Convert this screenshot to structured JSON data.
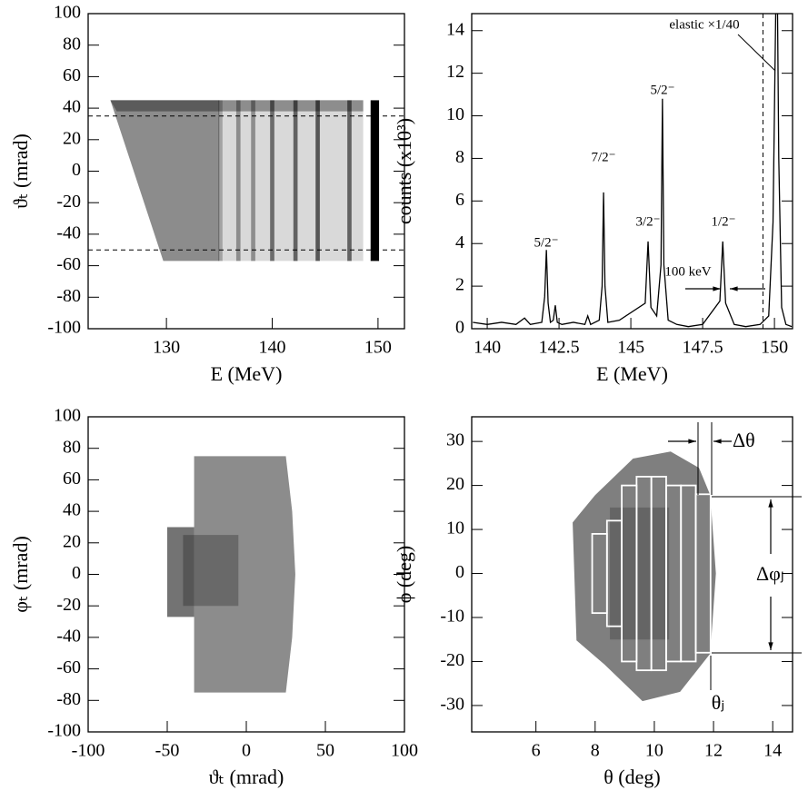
{
  "chart_data": [
    {
      "type": "density",
      "xlabel": "E (MeV)",
      "ylabel": "ϑₜ (mrad)",
      "color": "#000000",
      "xlim": [
        122.6,
        152.5
      ],
      "ylim": [
        -100,
        100
      ],
      "xticks": [
        130,
        140,
        150
      ],
      "yticks": [
        -100,
        -80,
        -60,
        -40,
        -20,
        0,
        20,
        40,
        60,
        80,
        100
      ],
      "regions": [
        {
          "x": [
            124.7,
            135,
            135,
            129.7
          ],
          "y": [
            45,
            45,
            -57,
            -57
          ],
          "intensity": 0.45
        },
        {
          "x": [
            135,
            148.6,
            148.6,
            135
          ],
          "y": [
            45,
            45,
            -57,
            -57
          ],
          "intensity": 0.15
        },
        {
          "x": [
            124.7,
            148.6,
            148.6,
            125.3
          ],
          "y": [
            45,
            45,
            38,
            38
          ],
          "intensity": 0.35
        }
      ],
      "bands": [
        {
          "x": 135.1,
          "width": 0.4,
          "y": [
            -57,
            45
          ],
          "intensity": 0.25
        },
        {
          "x": 136.8,
          "width": 0.4,
          "y": [
            -57,
            45
          ],
          "intensity": 0.35
        },
        {
          "x": 138.2,
          "width": 0.4,
          "y": [
            -57,
            45
          ],
          "intensity": 0.35
        },
        {
          "x": 140.0,
          "width": 0.4,
          "y": [
            -57,
            45
          ],
          "intensity": 0.5
        },
        {
          "x": 142.2,
          "width": 0.4,
          "y": [
            -57,
            45
          ],
          "intensity": 0.55
        },
        {
          "x": 144.3,
          "width": 0.4,
          "y": [
            -57,
            45
          ],
          "intensity": 0.6
        },
        {
          "x": 147.3,
          "width": 0.4,
          "y": [
            -57,
            45
          ],
          "intensity": 0.55
        },
        {
          "x": 149.7,
          "width": 0.8,
          "y": [
            -57,
            45
          ],
          "intensity": 1
        }
      ],
      "hlines": [
        35,
        -50
      ]
    },
    {
      "type": "line",
      "xlabel": "E (MeV)",
      "ylabel": "counts (x10³)",
      "xlim": [
        139.46,
        150.63
      ],
      "ylim": [
        0,
        14.8
      ],
      "xticks": [
        140,
        142.5,
        145,
        147.5,
        150
      ],
      "yticks": [
        0,
        2,
        4,
        6,
        8,
        10,
        12,
        14
      ],
      "color": "#000000",
      "x": [
        139.5,
        140,
        140.5,
        141,
        141.3,
        141.5,
        141.9,
        142.0,
        142.06,
        142.12,
        142.2,
        142.3,
        142.37,
        142.44,
        142.6,
        143,
        143.4,
        143.5,
        143.6,
        143.9,
        144.0,
        144.05,
        144.1,
        144.2,
        144.6,
        145.5,
        145.6,
        145.7,
        145.9,
        146.05,
        146.1,
        146.15,
        146.3,
        146.6,
        147,
        147.5,
        148.1,
        148.2,
        148.3,
        148.6,
        149,
        149.5,
        149.8,
        149.95,
        150.05,
        150.1,
        150.15,
        150.25,
        150.4,
        150.6
      ],
      "values": [
        0.3,
        0.2,
        0.3,
        0.2,
        0.5,
        0.2,
        0.3,
        1.5,
        3.7,
        1.2,
        0.3,
        0.4,
        1.1,
        0.3,
        0.2,
        0.3,
        0.2,
        0.6,
        0.2,
        0.4,
        2.0,
        6.4,
        2.0,
        0.3,
        0.4,
        1.2,
        4.1,
        1.0,
        0.6,
        3.0,
        10.8,
        3.0,
        0.4,
        0.2,
        0.1,
        0.2,
        1.3,
        4.1,
        1.2,
        0.2,
        0.1,
        0.2,
        0.6,
        5,
        15.5,
        16,
        8,
        1,
        0.2,
        0.1
      ],
      "vlines": [
        149.6
      ],
      "annotations": [
        "5/2⁻",
        "7/2⁻",
        "3/2⁻",
        "5/2⁻",
        "1/2⁻",
        "elastic ×1/40",
        "100 keV"
      ]
    },
    {
      "type": "density",
      "xlabel": "ϑₜ (mrad)",
      "ylabel": "φₜ (mrad)",
      "color": "#000000",
      "xlim": [
        -100,
        100
      ],
      "ylim": [
        -100,
        100
      ],
      "xticks": [
        -100,
        -50,
        0,
        50,
        100
      ],
      "yticks": [
        -100,
        -80,
        -60,
        -40,
        -20,
        0,
        20,
        40,
        60,
        80,
        100
      ],
      "regions": [
        {
          "x": [
            -50,
            -33,
            -33,
            -50
          ],
          "y": [
            -27,
            -27,
            30,
            30
          ],
          "intensity": 0.55
        },
        {
          "x": [
            -33,
            25,
            29,
            31,
            29,
            25,
            -33
          ],
          "y": [
            75,
            75,
            40,
            0,
            -40,
            -75,
            -75
          ],
          "intensity": 0.45
        },
        {
          "x": [
            -40,
            -5,
            -5,
            -40
          ],
          "y": [
            -20,
            -20,
            25,
            25
          ],
          "intensity": 0.25
        }
      ]
    },
    {
      "type": "density",
      "xlabel": "θ (deg)",
      "ylabel": "ϕ (deg)",
      "color": "#000000",
      "xlim": [
        3.83,
        14.67
      ],
      "ylim": [
        -36,
        35.6
      ],
      "xticks": [
        6,
        8,
        10,
        12,
        14
      ],
      "yticks": [
        -30,
        -20,
        -10,
        0,
        10,
        20,
        30
      ],
      "regions": [
        {
          "x": [
            7.24,
            8.0,
            9.28,
            10.55,
            11.51,
            11.89,
            12.08,
            11.89,
            10.87,
            9.6,
            8.32,
            7.37
          ],
          "y": [
            11.6,
            17.8,
            26.1,
            27.7,
            24.0,
            17.8,
            0,
            -18.2,
            -26.9,
            -29,
            -20.7,
            -15.2
          ],
          "intensity": 0.5
        },
        {
          "x": [
            8.5,
            10.5,
            10.5,
            8.5
          ],
          "y": [
            -15,
            -15,
            15,
            15
          ],
          "intensity": 0.2
        }
      ],
      "boxes": [
        {
          "x": [
            7.9,
            8.4
          ],
          "y": [
            -9,
            9
          ]
        },
        {
          "x": [
            8.4,
            8.9
          ],
          "y": [
            -12,
            12
          ]
        },
        {
          "x": [
            8.9,
            9.4
          ],
          "y": [
            -20,
            20
          ]
        },
        {
          "x": [
            9.4,
            9.9
          ],
          "y": [
            -22,
            22
          ]
        },
        {
          "x": [
            9.9,
            10.4
          ],
          "y": [
            -22,
            22
          ]
        },
        {
          "x": [
            10.4,
            10.9
          ],
          "y": [
            -20,
            20
          ]
        },
        {
          "x": [
            10.9,
            11.4
          ],
          "y": [
            -20,
            20
          ]
        },
        {
          "x": [
            11.4,
            11.9
          ],
          "y": [
            -18,
            18
          ]
        }
      ],
      "annotations": [
        "Δθ",
        "Δφⱼ",
        "θⱼ"
      ]
    }
  ]
}
